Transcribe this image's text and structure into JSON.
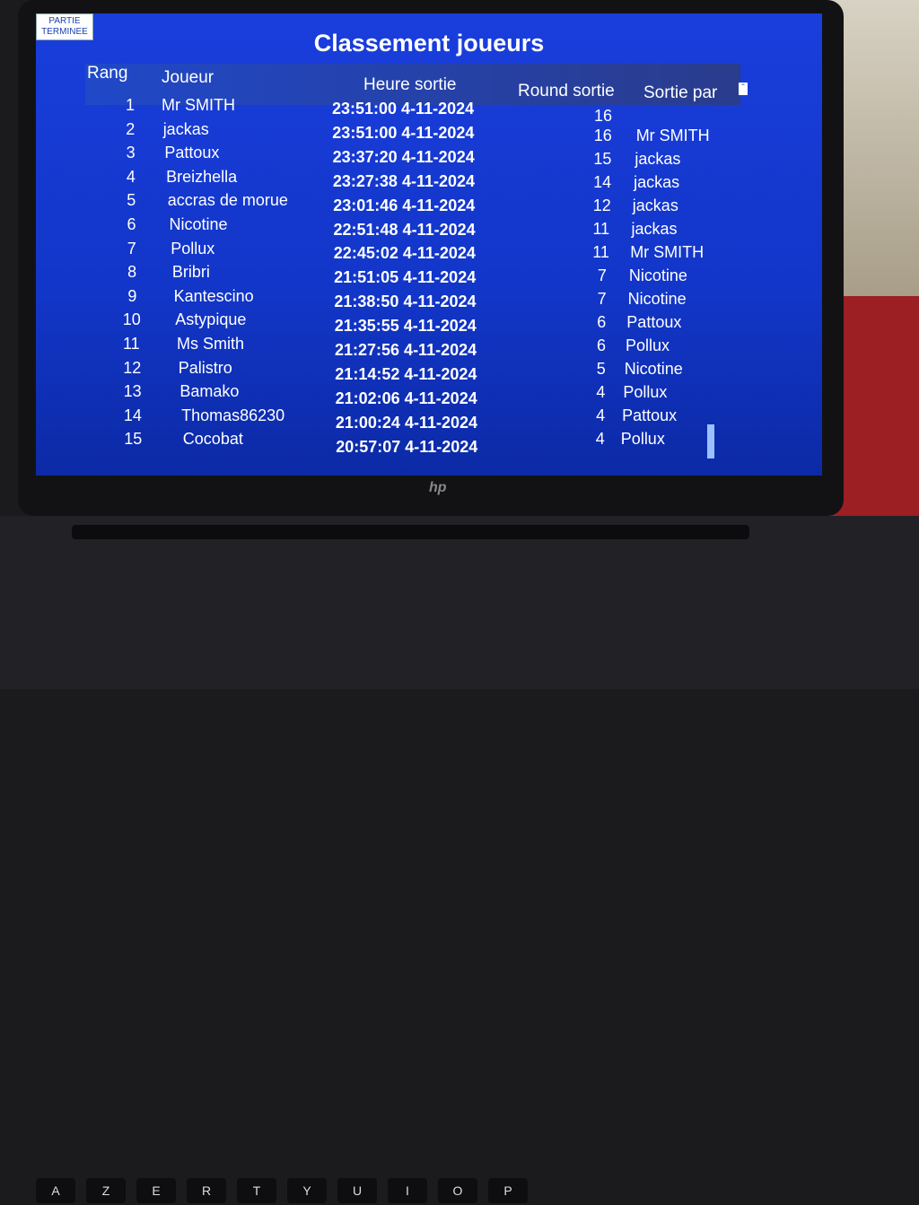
{
  "badge": {
    "lines": [
      "PARTIE",
      "TERMINEE"
    ]
  },
  "title": "Classement joueurs",
  "table": {
    "headers": [
      "Rang",
      "Joueur",
      "Heure sortie",
      "Round sortie",
      "Sortie par"
    ],
    "rows": [
      [
        1,
        "Mr SMITH",
        "23:51:00 4-11-2024",
        16,
        null
      ],
      [
        2,
        "jackas",
        "23:51:00 4-11-2024",
        16,
        "Mr SMITH"
      ],
      [
        3,
        "Pattoux",
        "23:37:20 4-11-2024",
        15,
        "jackas"
      ],
      [
        4,
        "Breizhella",
        "23:27:38 4-11-2024",
        14,
        "jackas"
      ],
      [
        5,
        "accras de morue",
        "23:01:46 4-11-2024",
        12,
        "jackas"
      ],
      [
        6,
        "Nicotine",
        "22:51:48 4-11-2024",
        11,
        "jackas"
      ],
      [
        7,
        "Pollux",
        "22:45:02 4-11-2024",
        11,
        "Mr SMITH"
      ],
      [
        8,
        "Bribri",
        "21:51:05 4-11-2024",
        7,
        "Nicotine"
      ],
      [
        9,
        "Kantescino",
        "21:38:50 4-11-2024",
        7,
        "Nicotine"
      ],
      [
        10,
        "Astypique",
        "21:35:55 4-11-2024",
        6,
        "Pattoux"
      ],
      [
        11,
        "Ms Smith",
        "21:27:56 4-11-2024",
        6,
        "Pollux"
      ],
      [
        12,
        "Palistro",
        "21:14:52 4-11-2024",
        5,
        "Nicotine"
      ],
      [
        13,
        "Bamako",
        "21:02:06 4-11-2024",
        4,
        "Pollux"
      ],
      [
        14,
        "Thomas86230",
        "21:00:24 4-11-2024",
        4,
        "Pattoux"
      ],
      [
        15,
        "Cocobat",
        "20:57:07 4-11-2024",
        4,
        "Pollux"
      ]
    ]
  },
  "laptop": {
    "logo": "hp"
  },
  "keyboard": {
    "keys": [
      "A",
      "Z",
      "E",
      "R",
      "T",
      "Y",
      "U",
      "I",
      "O",
      "P"
    ]
  }
}
